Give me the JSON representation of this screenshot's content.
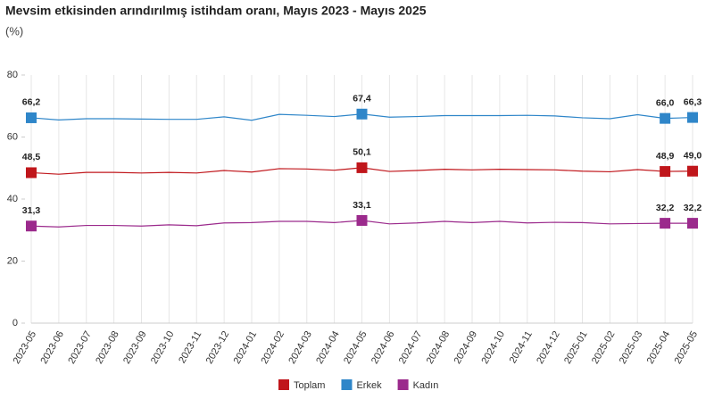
{
  "chart_data": {
    "type": "line",
    "title": "Mevsim etkisinden arındırılmış istihdam oranı, Mayıs 2023 - Mayıs 2025",
    "subtitle": "(%)",
    "categories": [
      "2023-05",
      "2023-06",
      "2023-07",
      "2023-08",
      "2023-09",
      "2023-10",
      "2023-11",
      "2023-12",
      "2024-01",
      "2024-02",
      "2024-03",
      "2024-04",
      "2024-05",
      "2024-06",
      "2024-07",
      "2024-08",
      "2024-09",
      "2024-10",
      "2024-11",
      "2024-12",
      "2025-01",
      "2025-02",
      "2025-03",
      "2025-04",
      "2025-05"
    ],
    "series": [
      {
        "name": "Toplam",
        "color": "#c0161b",
        "values": [
          48.5,
          48.0,
          48.6,
          48.6,
          48.4,
          48.6,
          48.4,
          49.2,
          48.7,
          49.8,
          49.7,
          49.3,
          50.1,
          48.9,
          49.2,
          49.6,
          49.4,
          49.6,
          49.5,
          49.4,
          49.0,
          48.8,
          49.5,
          48.9,
          49.0
        ],
        "value_labels": [
          "48,5",
          null,
          null,
          null,
          null,
          null,
          null,
          null,
          null,
          null,
          null,
          null,
          "50,1",
          null,
          null,
          null,
          null,
          null,
          null,
          null,
          null,
          null,
          null,
          "48,9",
          "49,0"
        ]
      },
      {
        "name": "Erkek",
        "color": "#2f86c9",
        "values": [
          66.2,
          65.5,
          65.9,
          65.9,
          65.8,
          65.7,
          65.7,
          66.5,
          65.4,
          67.3,
          67.0,
          66.6,
          67.4,
          66.4,
          66.6,
          66.9,
          66.9,
          66.9,
          67.0,
          66.8,
          66.2,
          65.9,
          67.2,
          66.0,
          66.3
        ],
        "value_labels": [
          "66,2",
          null,
          null,
          null,
          null,
          null,
          null,
          null,
          null,
          null,
          null,
          null,
          "67,4",
          null,
          null,
          null,
          null,
          null,
          null,
          null,
          null,
          null,
          null,
          "66,0",
          "66,3"
        ]
      },
      {
        "name": "Kadın",
        "color": "#9b2a8c",
        "values": [
          31.3,
          31.0,
          31.5,
          31.5,
          31.3,
          31.7,
          31.4,
          32.3,
          32.4,
          32.8,
          32.8,
          32.4,
          33.1,
          32.0,
          32.3,
          32.8,
          32.4,
          32.8,
          32.3,
          32.5,
          32.4,
          32.0,
          32.1,
          32.2,
          32.2
        ],
        "value_labels": [
          "31,3",
          null,
          null,
          null,
          null,
          null,
          null,
          null,
          null,
          null,
          null,
          null,
          "33,1",
          null,
          null,
          null,
          null,
          null,
          null,
          null,
          null,
          null,
          null,
          "32,2",
          "32,2"
        ]
      }
    ],
    "ylim": [
      0,
      80
    ],
    "yticks": [
      0,
      20,
      40,
      60,
      80
    ],
    "grid": true,
    "legend": "bottom"
  }
}
